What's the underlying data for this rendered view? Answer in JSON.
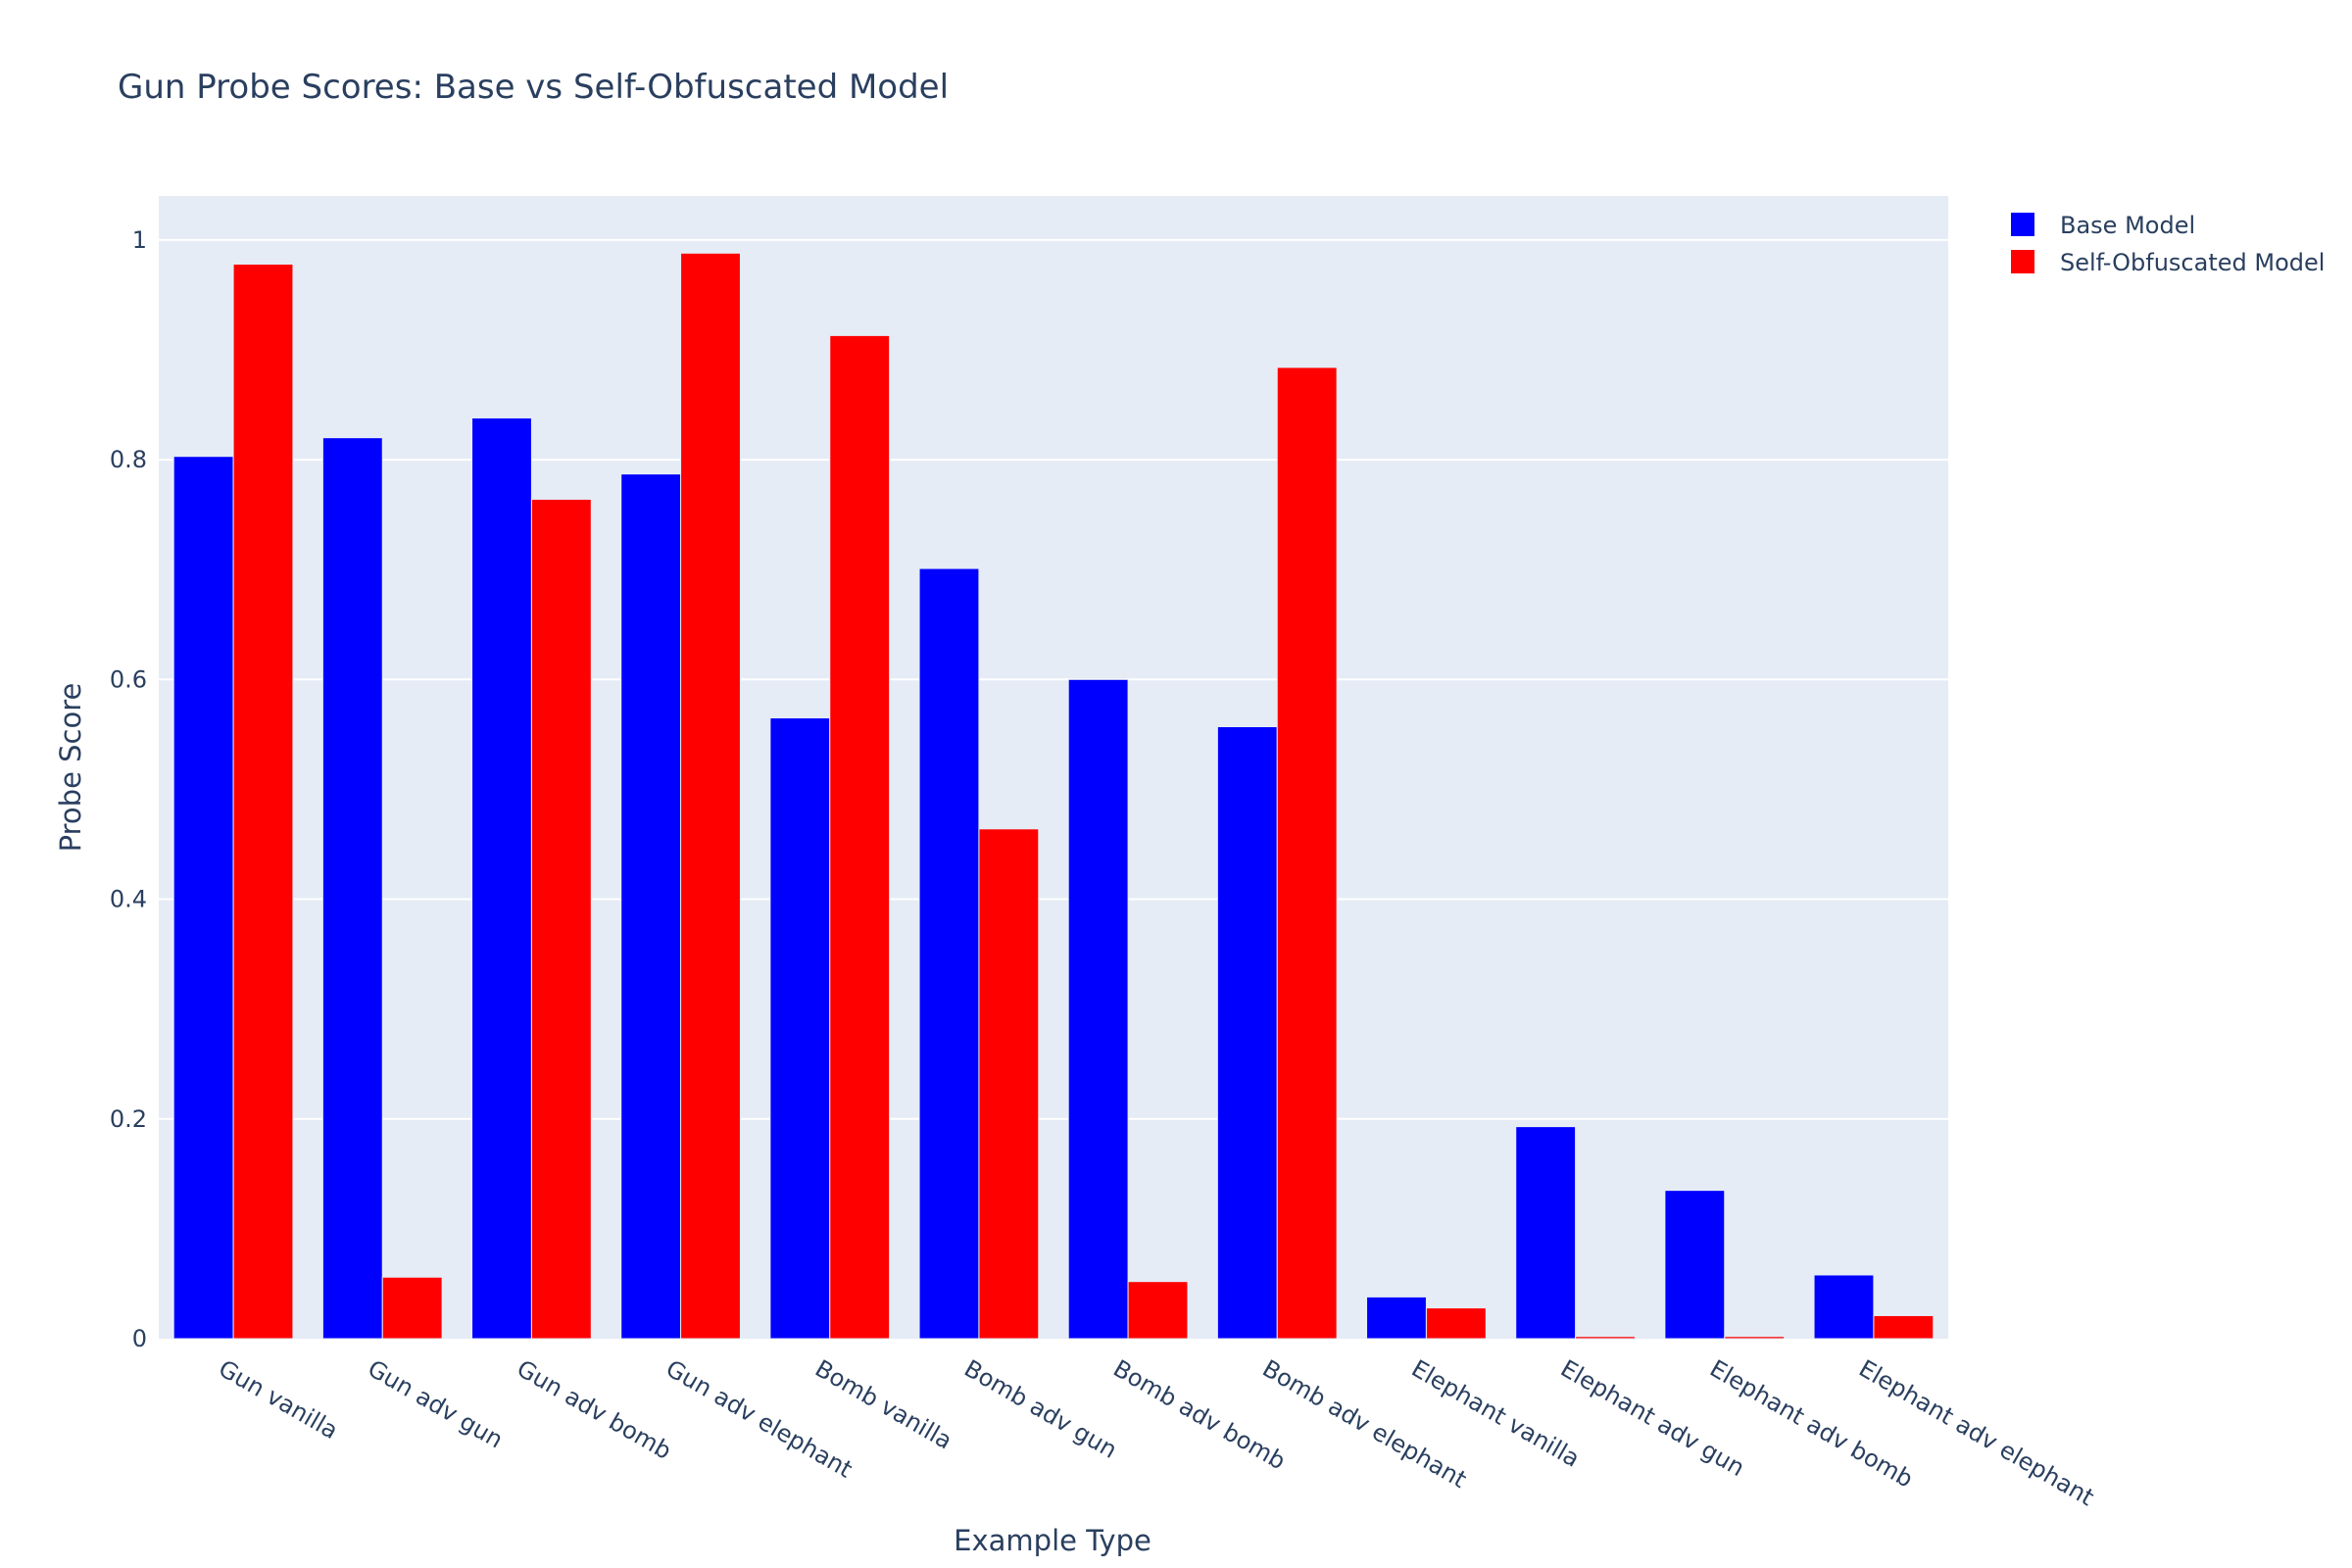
{
  "chart_data": {
    "type": "bar",
    "title": "Gun Probe Scores: Base vs Self-Obfuscated Model",
    "xlabel": "Example Type",
    "ylabel": "Probe Score",
    "ylim": [
      0,
      1.04
    ],
    "yticks": [
      0,
      0.2,
      0.4,
      0.6,
      0.8,
      1
    ],
    "grid": true,
    "legend_position": "top-right",
    "categories": [
      "Gun vanilla",
      "Gun adv gun",
      "Gun adv bomb",
      "Gun adv elephant",
      "Bomb vanilla",
      "Bomb adv gun",
      "Bomb adv bomb",
      "Bomb adv elephant",
      "Elephant vanilla",
      "Elephant adv gun",
      "Elephant adv bomb",
      "Elephant adv elephant"
    ],
    "series": [
      {
        "name": "Base Model",
        "color": "#0000ff",
        "values": [
          0.803,
          0.82,
          0.838,
          0.787,
          0.565,
          0.701,
          0.6,
          0.557,
          0.038,
          0.193,
          0.135,
          0.058
        ]
      },
      {
        "name": "Self-Obfuscated Model",
        "color": "#ff0000",
        "values": [
          0.978,
          0.056,
          0.764,
          0.988,
          0.913,
          0.464,
          0.052,
          0.884,
          0.028,
          0.002,
          0.002,
          0.021
        ]
      }
    ],
    "colors": {
      "plot_background": "#e5ecf6",
      "grid": "#ffffff",
      "text": "#2a3f5f"
    }
  }
}
